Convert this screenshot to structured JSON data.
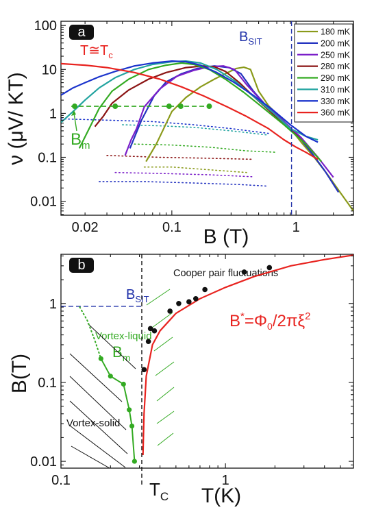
{
  "chart_data": [
    {
      "panel": "a",
      "type": "line",
      "xlabel": "B (T)",
      "ylabel": "ν (μV/ KT)",
      "xscale": "log",
      "yscale": "log",
      "xlim": [
        0.0128,
        2.9
      ],
      "ylim": [
        0.0048,
        125
      ],
      "xticks": [
        {
          "v": 0.02,
          "label": "0.02"
        },
        {
          "v": 0.1,
          "label": "0.1"
        },
        {
          "v": 1,
          "label": "1"
        }
      ],
      "yticks": [
        {
          "v": 100,
          "label": "100"
        },
        {
          "v": 10,
          "label": "10"
        },
        {
          "v": 1,
          "label": "1"
        },
        {
          "v": 0.1,
          "label": "0.1"
        },
        {
          "v": 0.01,
          "label": "0.01"
        }
      ],
      "legend_position": "top-right",
      "annotations": {
        "tc": {
          "main": "T≅T",
          "sub": "c",
          "color": "#e8231f"
        },
        "bsit": {
          "main": "B",
          "sub": "SIT",
          "color": "#2233aa"
        },
        "bm": {
          "main": "B",
          "sub": "m",
          "color": "#33aa22"
        }
      },
      "bsit_x": 0.92,
      "bm_level": 1.45,
      "bm_points": [
        0.0165,
        0.035,
        0.095,
        0.118,
        0.2
      ],
      "series": [
        {
          "name": "180 mK",
          "color": "#8a9a1a",
          "solid": [
            [
              0.062,
              0.08
            ],
            [
              0.075,
              0.2
            ],
            [
              0.1,
              1.1
            ],
            [
              0.13,
              2.3
            ],
            [
              0.17,
              4
            ],
            [
              0.22,
              6
            ],
            [
              0.27,
              8
            ],
            [
              0.33,
              10.5
            ],
            [
              0.38,
              11.2
            ],
            [
              0.43,
              10
            ],
            [
              0.5,
              3.2
            ],
            [
              0.6,
              1.5
            ],
            [
              0.75,
              0.8
            ],
            [
              0.9,
              0.45
            ],
            [
              1.1,
              0.22
            ],
            [
              1.4,
              0.1
            ],
            [
              1.8,
              0.04
            ],
            [
              2.3,
              0.015
            ],
            [
              2.9,
              0.006
            ]
          ],
          "dotted": [
            [
              0.06,
              0.06
            ],
            [
              0.1,
              0.06
            ],
            [
              0.2,
              0.052
            ],
            [
              0.4,
              0.045
            ]
          ]
        },
        {
          "name": "200 mK",
          "color": "#2433c0",
          "solid": [
            [
              0.046,
              0.16
            ],
            [
              0.057,
              0.7
            ],
            [
              0.072,
              2.5
            ],
            [
              0.09,
              5.2
            ],
            [
              0.12,
              8
            ],
            [
              0.16,
              10.5
            ],
            [
              0.22,
              12
            ],
            [
              0.29,
              11
            ],
            [
              0.36,
              8
            ],
            [
              0.45,
              3.3
            ],
            [
              0.6,
              1.3
            ],
            [
              0.8,
              0.65
            ],
            [
              1.0,
              0.35
            ],
            [
              1.3,
              0.14
            ],
            [
              1.7,
              0.05
            ],
            [
              2.2,
              0.016
            ]
          ],
          "dotted": [
            [
              0.026,
              0.028
            ],
            [
              0.06,
              0.028
            ],
            [
              0.15,
              0.026
            ],
            [
              0.35,
              0.024
            ],
            [
              0.6,
              0.022
            ]
          ]
        },
        {
          "name": "250 mK",
          "color": "#7b1fc9",
          "solid": [
            [
              0.042,
              0.11
            ],
            [
              0.047,
              0.25
            ],
            [
              0.052,
              0.45
            ],
            [
              0.06,
              1.4
            ],
            [
              0.08,
              3.6
            ],
            [
              0.11,
              7
            ],
            [
              0.15,
              9.5
            ],
            [
              0.2,
              11.5
            ],
            [
              0.26,
              12
            ],
            [
              0.32,
              10
            ],
            [
              0.4,
              4.5
            ],
            [
              0.55,
              1.7
            ],
            [
              0.8,
              0.65
            ],
            [
              1.1,
              0.28
            ],
            [
              1.5,
              0.1
            ],
            [
              2.0,
              0.035
            ]
          ],
          "dotted": [
            [
              0.035,
              0.045
            ],
            [
              0.08,
              0.043
            ],
            [
              0.2,
              0.04
            ],
            [
              0.45,
              0.036
            ]
          ]
        },
        {
          "name": "280 mK",
          "color": "#8b1414",
          "solid": [
            [
              0.024,
              0.5
            ],
            [
              0.028,
              0.85
            ],
            [
              0.033,
              1.7
            ],
            [
              0.045,
              3.4
            ],
            [
              0.065,
              6
            ],
            [
              0.09,
              8.5
            ],
            [
              0.13,
              11
            ],
            [
              0.18,
              12
            ],
            [
              0.22,
              11.5
            ],
            [
              0.27,
              9
            ],
            [
              0.35,
              5
            ],
            [
              0.45,
              2.5
            ],
            [
              0.6,
              1.2
            ],
            [
              0.85,
              0.5
            ],
            [
              1.2,
              0.2
            ],
            [
              1.6,
              0.08
            ]
          ],
          "dotted": [
            [
              0.03,
              0.11
            ],
            [
              0.08,
              0.1
            ],
            [
              0.2,
              0.095
            ],
            [
              0.45,
              0.09
            ]
          ]
        },
        {
          "name": "290 mK",
          "color": "#33aa22",
          "solid": [
            [
              0.018,
              0.16
            ],
            [
              0.022,
              0.5
            ],
            [
              0.026,
              1.3
            ],
            [
              0.033,
              3.2
            ],
            [
              0.045,
              6
            ],
            [
              0.065,
              10
            ],
            [
              0.09,
              12.5
            ],
            [
              0.12,
              14
            ],
            [
              0.15,
              13
            ],
            [
              0.2,
              10
            ],
            [
              0.27,
              6
            ],
            [
              0.38,
              3
            ],
            [
              0.55,
              1.3
            ],
            [
              0.8,
              0.55
            ],
            [
              1.2,
              0.2
            ],
            [
              1.6,
              0.08
            ]
          ],
          "dotted": [
            [
              0.05,
              0.2
            ],
            [
              0.1,
              0.19
            ],
            [
              0.2,
              0.17
            ],
            [
              0.4,
              0.14
            ],
            [
              0.7,
              0.13
            ]
          ]
        },
        {
          "name": "310 mK",
          "color": "#22a4a0",
          "solid": [
            [
              0.0128,
              0.62
            ],
            [
              0.016,
              1.1
            ],
            [
              0.02,
              2.0
            ],
            [
              0.026,
              3.8
            ],
            [
              0.035,
              6.5
            ],
            [
              0.05,
              10
            ],
            [
              0.07,
              13
            ],
            [
              0.1,
              15
            ],
            [
              0.13,
              15.5
            ],
            [
              0.17,
              14
            ],
            [
              0.23,
              10
            ],
            [
              0.32,
              5.5
            ],
            [
              0.45,
              2.5
            ],
            [
              0.65,
              1.05
            ],
            [
              0.9,
              0.45
            ],
            [
              1.2,
              0.3
            ],
            [
              1.5,
              0.25
            ]
          ],
          "dotted": [
            [
              0.04,
              0.55
            ],
            [
              0.08,
              0.52
            ],
            [
              0.15,
              0.48
            ],
            [
              0.3,
              0.4
            ],
            [
              0.6,
              0.32
            ]
          ]
        },
        {
          "name": "330 mK",
          "color": "#1a33cc",
          "solid": [
            [
              0.0128,
              2.6
            ],
            [
              0.016,
              3.8
            ],
            [
              0.02,
              5.0
            ],
            [
              0.026,
              6.8
            ],
            [
              0.035,
              9
            ],
            [
              0.05,
              12
            ],
            [
              0.07,
              14
            ],
            [
              0.1,
              15.5
            ],
            [
              0.13,
              15
            ],
            [
              0.17,
              12.5
            ],
            [
              0.23,
              8.5
            ],
            [
              0.32,
              5
            ],
            [
              0.45,
              2.6
            ],
            [
              0.65,
              1.2
            ],
            [
              0.9,
              0.55
            ],
            [
              1.2,
              0.3
            ],
            [
              1.5,
              0.22
            ]
          ],
          "dotted": [
            [
              0.0128,
              0.75
            ],
            [
              0.03,
              0.7
            ],
            [
              0.07,
              0.65
            ],
            [
              0.15,
              0.55
            ],
            [
              0.3,
              0.45
            ],
            [
              0.6,
              0.35
            ]
          ]
        },
        {
          "name": "360 mK",
          "color": "#e8231f",
          "solid": [
            [
              0.0128,
              13.5
            ],
            [
              0.02,
              12.5
            ],
            [
              0.03,
              11
            ],
            [
              0.05,
              8.5
            ],
            [
              0.08,
              6
            ],
            [
              0.12,
              4
            ],
            [
              0.18,
              2.5
            ],
            [
              0.28,
              1.4
            ],
            [
              0.4,
              0.85
            ],
            [
              0.6,
              0.45
            ],
            [
              0.8,
              0.25
            ],
            [
              1.0,
              0.17
            ],
            [
              1.2,
              0.13
            ],
            [
              1.5,
              0.09
            ]
          ],
          "dotted": []
        }
      ]
    },
    {
      "panel": "b",
      "type": "line",
      "xlabel": "T(K)",
      "ylabel": "B(T)",
      "xscale": "log",
      "yscale": "log",
      "xlim": [
        0.1,
        6
      ],
      "ylim": [
        0.0082,
        4.2
      ],
      "xticks": [
        {
          "v": 0.1,
          "label": "0.1"
        },
        {
          "v": 1,
          "label": "1"
        }
      ],
      "yticks": [
        {
          "v": 1,
          "label": "1"
        },
        {
          "v": 0.1,
          "label": "0.1"
        },
        {
          "v": 0.01,
          "label": "0.01"
        }
      ],
      "tc_x": 0.31,
      "bsit_y": 0.92,
      "tc_label": {
        "main": "T",
        "sub": "C"
      },
      "bsit_label": {
        "main": "B",
        "sub": "SIT"
      },
      "bm_label": {
        "main": "B",
        "sub": "m"
      },
      "region_labels": {
        "cooper": "Cooper pair fluctuations",
        "liquid": "Vortex-liquid",
        "solid": "Vortex-solid"
      },
      "formula": {
        "B": "B",
        "star": "*",
        "eq": "=Φ",
        "phi_sub": "0",
        "rest": "/2πξ",
        "exp": "2"
      },
      "bm_line": [
        [
          0.175,
          0.2
        ],
        [
          0.2,
          0.12
        ],
        [
          0.24,
          0.095
        ],
        [
          0.26,
          0.045
        ],
        [
          0.27,
          0.028
        ],
        [
          0.28,
          0.01
        ]
      ],
      "bm_dotted": [
        [
          0.13,
          0.9
        ],
        [
          0.145,
          0.6
        ],
        [
          0.16,
          0.35
        ],
        [
          0.175,
          0.2
        ]
      ],
      "data_points": [
        [
          0.32,
          0.145
        ],
        [
          0.34,
          0.33
        ],
        [
          0.35,
          0.48
        ],
        [
          0.37,
          0.45
        ],
        [
          0.46,
          0.8
        ],
        [
          0.52,
          1.0
        ],
        [
          0.6,
          1.05
        ],
        [
          0.66,
          1.15
        ],
        [
          0.75,
          1.5
        ],
        [
          1.3,
          2.5
        ],
        [
          1.85,
          2.85
        ]
      ],
      "fit_curve": [
        [
          0.315,
          0.012
        ],
        [
          0.32,
          0.04
        ],
        [
          0.33,
          0.12
        ],
        [
          0.36,
          0.3
        ],
        [
          0.4,
          0.45
        ],
        [
          0.5,
          0.75
        ],
        [
          0.7,
          1.15
        ],
        [
          1.0,
          1.6
        ],
        [
          1.5,
          2.2
        ],
        [
          2.5,
          3.0
        ],
        [
          4.0,
          3.6
        ],
        [
          6.0,
          4.1
        ]
      ]
    }
  ],
  "panel_labels": {
    "a": "a",
    "b": "b"
  },
  "colors": {
    "bm_green": "#33aa22",
    "red": "#e8231f",
    "blue": "#2233aa",
    "black": "#111111"
  }
}
